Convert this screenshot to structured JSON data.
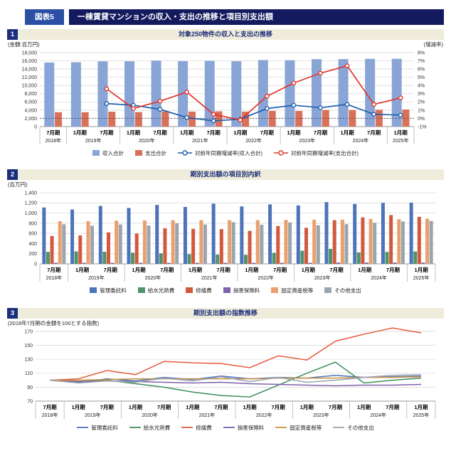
{
  "page": {
    "badge": "図表5",
    "title": "一棟賃貸マンションの収入・支出の推移と項目別支出額"
  },
  "theme": {
    "title_bar": "#131a5e",
    "badge_blue": "#2b4fa5",
    "section_bg": "#efecdb",
    "section_navy": "#1b2d7d",
    "section_text": "#1a2c78"
  },
  "sections": [
    {
      "num": "1",
      "title": "対象250物件の収入と支出の推移",
      "unit_left": "(金額:百万円)",
      "unit_right": "(増減率)"
    },
    {
      "num": "2",
      "title": "期別支出額の項目別内訳",
      "unit_left": "(百万円)"
    },
    {
      "num": "3",
      "title": "期別支出額の指数推移",
      "subtitle": "(2018年7月期の金額を100とする指数)"
    }
  ],
  "chart_data": [
    {
      "type": "bar",
      "subtype": "bars-with-yoy-lines",
      "title": "対象250物件の収入と支出の推移",
      "categories": [
        "7月期",
        "1月期",
        "7月期",
        "1月期",
        "7月期",
        "1月期",
        "7月期",
        "1月期",
        "7月期",
        "1月期",
        "7月期",
        "1月期",
        "7月期",
        "1月期"
      ],
      "year_groups": [
        {
          "year": "2018年",
          "count": 1
        },
        {
          "year": "2019年",
          "count": 2
        },
        {
          "year": "2020年",
          "count": 2
        },
        {
          "year": "2021年",
          "count": 2
        },
        {
          "year": "2022年",
          "count": 2
        },
        {
          "year": "2023年",
          "count": 2
        },
        {
          "year": "2024年",
          "count": 2
        },
        {
          "year": "2025年",
          "count": 1
        }
      ],
      "left_axis": {
        "label": "(金額:百万円)",
        "min": 0,
        "max": 18000,
        "step": 2000
      },
      "right_axis": {
        "label": "(増減率)",
        "min": -1,
        "max": 8,
        "step": 1,
        "suffix": "%"
      },
      "grid": true,
      "legend_position": "bottom",
      "zero_reference_line_right_axis": 0,
      "bar_series": [
        {
          "name": "収入合計",
          "color": "#89a5d6",
          "values": [
            15600,
            15650,
            15880,
            15900,
            16060,
            15920,
            16010,
            15900,
            16200,
            16160,
            16410,
            16430,
            16490,
            16500
          ]
        },
        {
          "name": "支出合計",
          "color": "#d97059",
          "values": [
            3500,
            3500,
            3630,
            3540,
            3705,
            3655,
            3720,
            3645,
            3820,
            3800,
            4030,
            4045,
            4095,
            4150
          ]
        }
      ],
      "line_series": [
        {
          "name": "対前年同期増減率(収入合計)",
          "color": "#1d5fae",
          "axis": "right",
          "marker": "open-circle",
          "values": [
            null,
            null,
            1.8,
            1.6,
            1.1,
            0.1,
            -0.3,
            -0.1,
            1.2,
            1.6,
            1.3,
            1.7,
            0.5,
            0.4
          ]
        },
        {
          "name": "対前年同期増減率(支出合計)",
          "color": "#e2352b",
          "axis": "right",
          "marker": "open-circle",
          "values": [
            null,
            null,
            3.6,
            1.2,
            2.1,
            3.2,
            0.5,
            -0.2,
            2.7,
            4.3,
            5.5,
            6.4,
            1.7,
            2.5
          ]
        }
      ]
    },
    {
      "type": "bar",
      "subtype": "grouped-bars",
      "title": "期別支出額の項目別内訳",
      "categories": [
        "7月期",
        "1月期",
        "7月期",
        "1月期",
        "7月期",
        "1月期",
        "7月期",
        "1月期",
        "7月期",
        "1月期",
        "7月期",
        "1月期",
        "7月期",
        "1月期"
      ],
      "year_groups": [
        {
          "year": "2018年",
          "count": 1
        },
        {
          "year": "2019年",
          "count": 2
        },
        {
          "year": "2020年",
          "count": 2
        },
        {
          "year": "2021年",
          "count": 2
        },
        {
          "year": "2022年",
          "count": 2
        },
        {
          "year": "2023年",
          "count": 2
        },
        {
          "year": "2024年",
          "count": 2
        },
        {
          "year": "2025年",
          "count": 1
        }
      ],
      "y_axis": {
        "label": "(百万円)",
        "min": 0,
        "max": 1400,
        "step": 200
      },
      "grid": true,
      "legend_position": "bottom",
      "series": [
        {
          "name": "管理委託料",
          "color": "#4d73b8",
          "values": [
            1110,
            1070,
            1140,
            1100,
            1160,
            1120,
            1185,
            1130,
            1170,
            1150,
            1215,
            1180,
            1200,
            1205
          ]
        },
        {
          "name": "給水光熱費",
          "color": "#4f9468",
          "values": [
            235,
            245,
            238,
            220,
            208,
            192,
            182,
            178,
            218,
            258,
            295,
            225,
            235,
            243
          ]
        },
        {
          "name": "修繕費",
          "color": "#d2593e",
          "values": [
            550,
            560,
            620,
            595,
            700,
            690,
            685,
            650,
            745,
            710,
            860,
            915,
            960,
            925
          ]
        },
        {
          "name": "損害保険料",
          "color": "#7e62aa",
          "values": [
            20,
            20,
            20,
            20,
            20,
            20,
            20,
            20,
            20,
            20,
            25,
            25,
            25,
            25
          ]
        },
        {
          "name": "固定資産税等",
          "color": "#e9a06e",
          "values": [
            840,
            840,
            850,
            855,
            860,
            860,
            860,
            860,
            865,
            870,
            870,
            885,
            880,
            890
          ]
        },
        {
          "name": "その他支出",
          "color": "#9aa5ae",
          "values": [
            780,
            750,
            775,
            755,
            800,
            775,
            820,
            770,
            815,
            760,
            780,
            810,
            835,
            845
          ]
        }
      ]
    },
    {
      "type": "line",
      "subtype": "index-lines",
      "title": "期別支出額の指数推移",
      "subtitle": "(2018年7月期の金額を100とする指数)",
      "categories": [
        "7月期",
        "1月期",
        "7月期",
        "1月期",
        "7月期",
        "1月期",
        "7月期",
        "1月期",
        "7月期",
        "1月期",
        "7月期",
        "1月期",
        "7月期",
        "1月期"
      ],
      "year_groups": [
        {
          "year": "2018年",
          "count": 1
        },
        {
          "year": "2019年",
          "count": 2
        },
        {
          "year": "2020年",
          "count": 2
        },
        {
          "year": "2021年",
          "count": 2
        },
        {
          "year": "2022年",
          "count": 2
        },
        {
          "year": "2023年",
          "count": 2
        },
        {
          "year": "2024年",
          "count": 2
        },
        {
          "year": "2025年",
          "count": 1
        }
      ],
      "y_axis": {
        "min": 70,
        "max": 170,
        "step": 20
      },
      "grid": true,
      "legend_position": "bottom",
      "series": [
        {
          "name": "管理委託料",
          "color": "#4d73b8",
          "values": [
            100,
            97,
            102,
            99,
            104,
            101,
            106,
            102,
            104,
            103,
            107,
            104,
            105,
            106
          ]
        },
        {
          "name": "給水光熱費",
          "color": "#3e8e5e",
          "values": [
            100,
            98,
            100,
            95,
            90,
            83,
            78,
            76,
            93,
            110,
            126,
            96,
            100,
            103
          ]
        },
        {
          "name": "修繕費",
          "color": "#e65c3c",
          "values": [
            100,
            102,
            114,
            108,
            127,
            125,
            124,
            118,
            135,
            129,
            156,
            166,
            175,
            168
          ]
        },
        {
          "name": "損害保険料",
          "color": "#7e62aa",
          "values": [
            100,
            98,
            99,
            98,
            97,
            96,
            97,
            95,
            94,
            93,
            92,
            93,
            93,
            94
          ]
        },
        {
          "name": "固定資産税等",
          "color": "#c89046",
          "values": [
            100,
            100,
            101,
            102,
            102,
            102,
            102,
            102,
            103,
            103,
            103,
            104,
            104,
            105
          ]
        },
        {
          "name": "その他支出",
          "color": "#9aa5ae",
          "values": [
            100,
            96,
            99,
            97,
            103,
            99,
            105,
            98,
            104,
            97,
            100,
            104,
            107,
            108
          ]
        }
      ]
    }
  ]
}
